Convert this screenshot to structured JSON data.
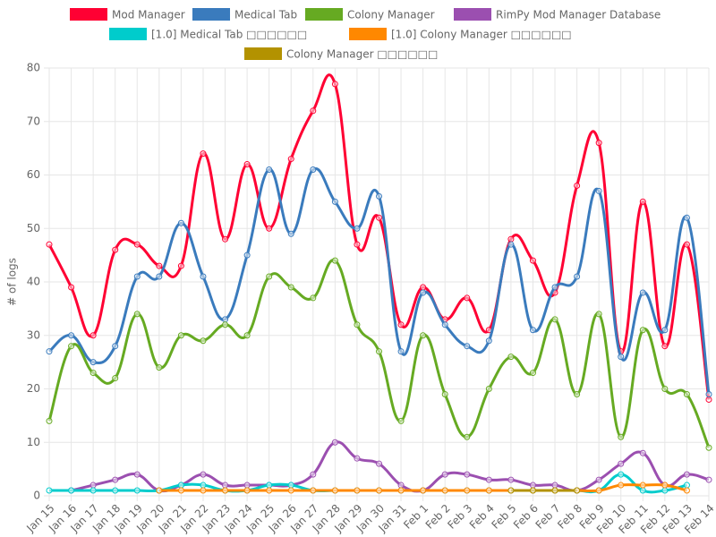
{
  "chart_data": {
    "type": "line",
    "y_label": "# of logs",
    "categories": [
      "Jan 15",
      "Jan 16",
      "Jan 17",
      "Jan 18",
      "Jan 19",
      "Jan 20",
      "Jan 21",
      "Jan 22",
      "Jan 23",
      "Jan 24",
      "Jan 25",
      "Jan 26",
      "Jan 27",
      "Jan 28",
      "Jan 29",
      "Jan 30",
      "Jan 31",
      "Feb 1",
      "Feb 2",
      "Feb 3",
      "Feb 4",
      "Feb 5",
      "Feb 6",
      "Feb 7",
      "Feb 8",
      "Feb 9",
      "Feb 10",
      "Feb 11",
      "Feb 12",
      "Feb 13",
      "Feb 14"
    ],
    "series": [
      {
        "name": "Mod Manager",
        "color": "#ff0033",
        "values": [
          47,
          39,
          30,
          46,
          47,
          43,
          43,
          64,
          48,
          62,
          50,
          63,
          72,
          77,
          47,
          52,
          32,
          39,
          33,
          37,
          31,
          48,
          44,
          38,
          58,
          66,
          27,
          55,
          28,
          47,
          18
        ]
      },
      {
        "name": "Medical Tab",
        "color": "#3a7bbd",
        "values": [
          27,
          30,
          25,
          28,
          41,
          41,
          51,
          41,
          33,
          45,
          61,
          49,
          61,
          55,
          50,
          56,
          27,
          38,
          32,
          28,
          29,
          47,
          31,
          39,
          41,
          57,
          26,
          38,
          31,
          52,
          19
        ]
      },
      {
        "name": "Colony Manager",
        "color": "#66aa22",
        "values": [
          14,
          28,
          23,
          22,
          34,
          24,
          30,
          29,
          32,
          30,
          41,
          39,
          37,
          44,
          32,
          27,
          14,
          30,
          19,
          11,
          20,
          26,
          23,
          33,
          19,
          34,
          11,
          31,
          20,
          19,
          9
        ]
      },
      {
        "name": "RimPy Mod Manager Database",
        "color": "#9b4fb0",
        "values": [
          null,
          1,
          2,
          3,
          4,
          1,
          2,
          4,
          2,
          2,
          2,
          2,
          4,
          10,
          7,
          6,
          2,
          1,
          4,
          4,
          3,
          3,
          2,
          2,
          1,
          3,
          6,
          8,
          2,
          4,
          3
        ]
      },
      {
        "name": "[1.0] Medical Tab □□□□□□",
        "color": "#00cccc",
        "values": [
          1,
          1,
          1,
          1,
          1,
          1,
          2,
          2,
          1,
          1,
          2,
          2,
          1,
          1,
          1,
          1,
          1,
          1,
          1,
          1,
          1,
          1,
          1,
          1,
          1,
          1,
          4,
          1,
          1,
          2,
          null
        ]
      },
      {
        "name": "[1.0] Colony Manager □□□□□□",
        "color": "#ff8800",
        "values": [
          null,
          null,
          null,
          null,
          null,
          1,
          1,
          1,
          1,
          1,
          1,
          1,
          1,
          1,
          1,
          1,
          1,
          1,
          1,
          1,
          1,
          1,
          1,
          1,
          1,
          1,
          2,
          2,
          2,
          1,
          null
        ]
      },
      {
        "name": "Colony Manager □□□□□□",
        "color": "#b39200",
        "values": [
          null,
          null,
          null,
          null,
          null,
          null,
          null,
          null,
          null,
          null,
          null,
          null,
          null,
          null,
          null,
          null,
          null,
          null,
          null,
          null,
          null,
          1,
          1,
          1,
          1,
          null,
          null,
          null,
          null,
          null,
          null
        ]
      }
    ],
    "ylim": [
      0,
      80
    ],
    "yticks": [
      0,
      10,
      20,
      30,
      40,
      50,
      60,
      70,
      80
    ],
    "grid": true
  }
}
